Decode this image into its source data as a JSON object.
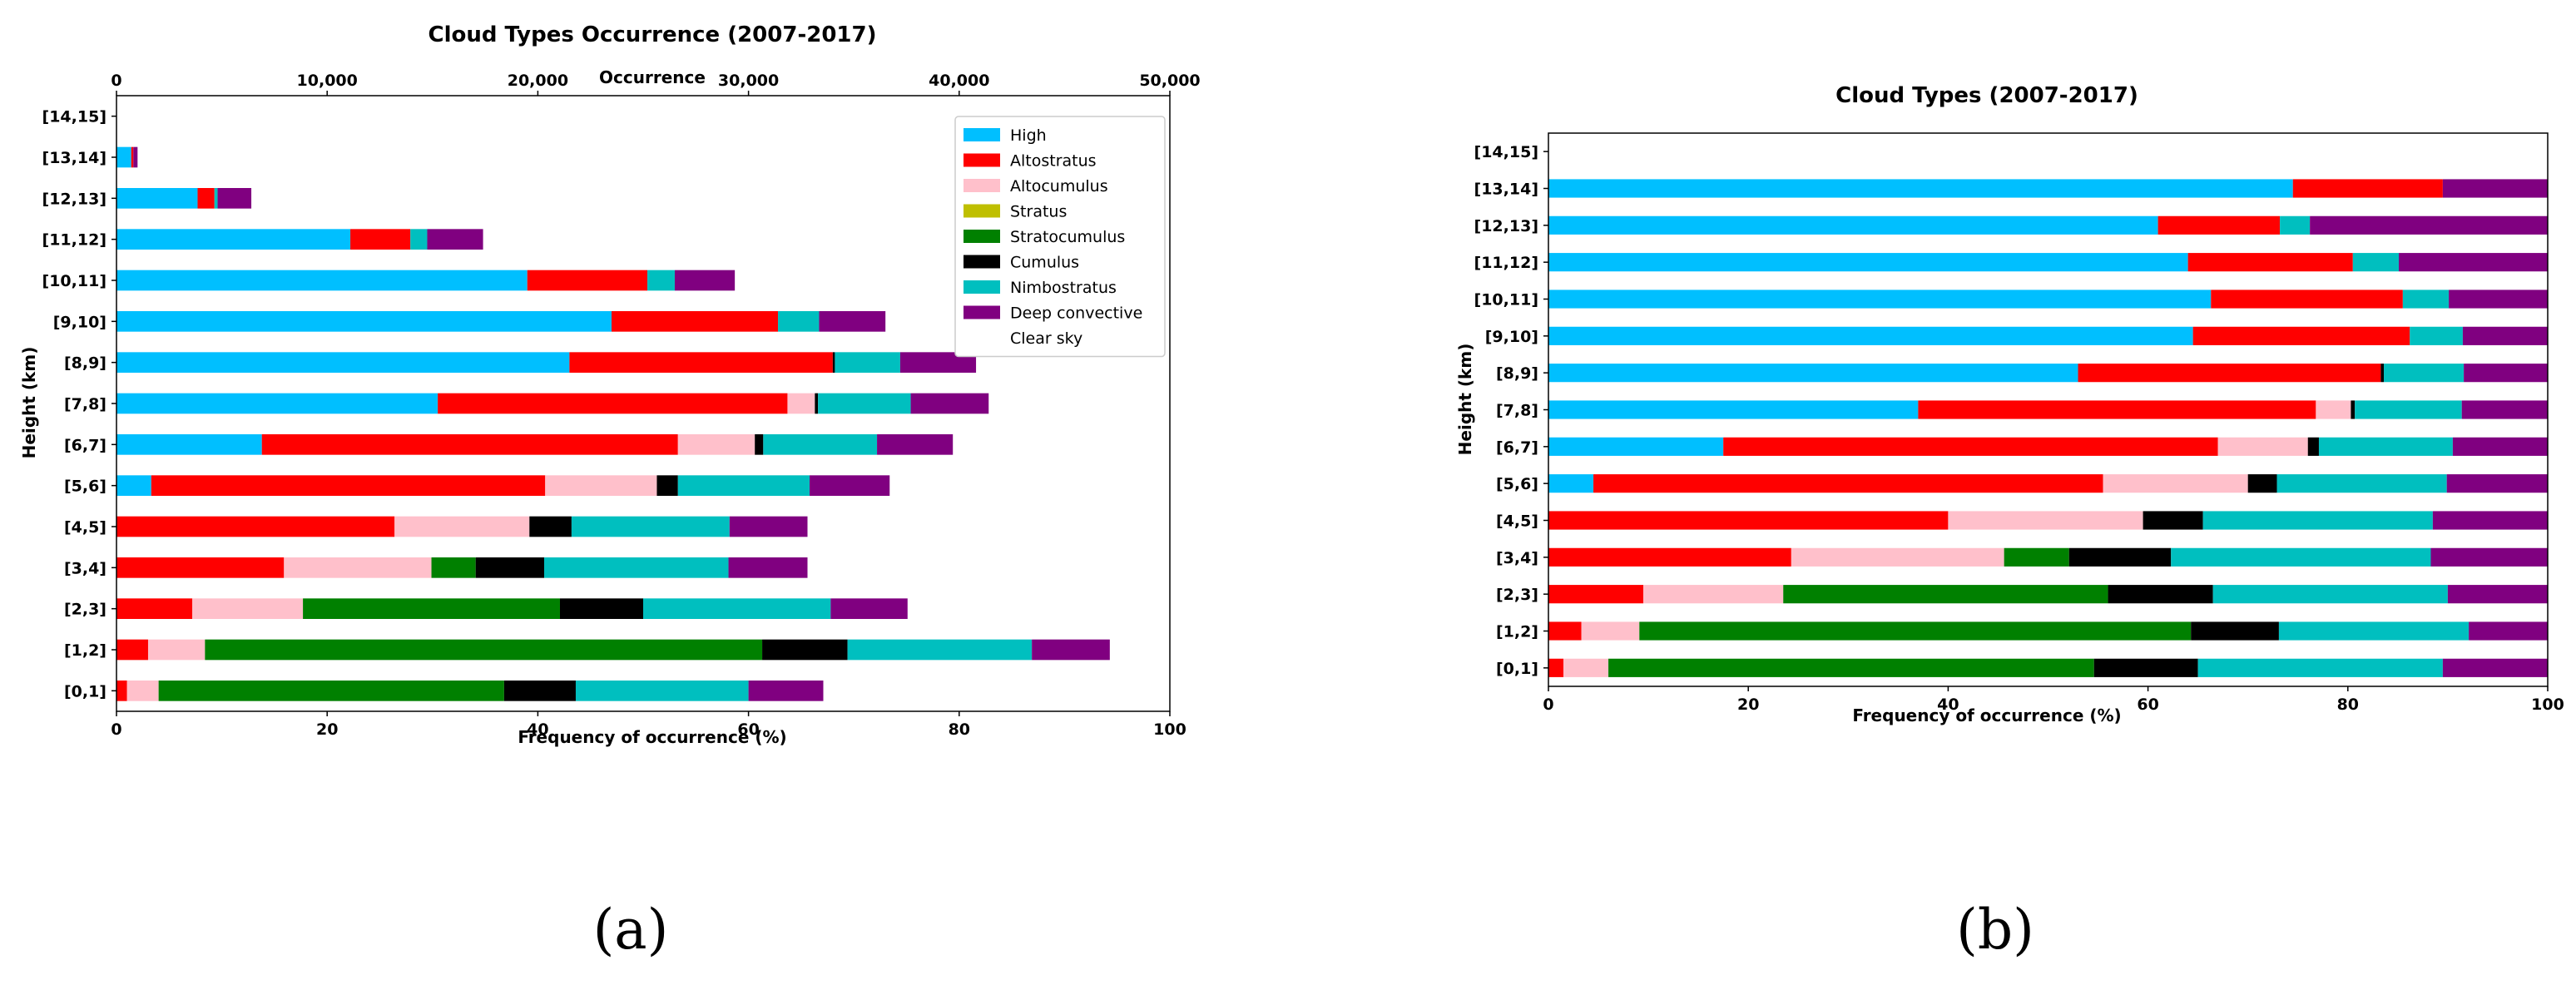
{
  "captions": {
    "a": "(a)",
    "b": "(b)"
  },
  "colors": {
    "High": "#00bfff",
    "Altostratus": "#ff0000",
    "Altocumulus": "#ffc0cb",
    "Stratus": "#bfbf00",
    "Stratocumulus": "#008000",
    "Cumulus": "#000000",
    "Nimbostratus": "#00bfbf",
    "Deep convective": "#800080",
    "Clear sky": "#ffffff"
  },
  "chart_data": [
    {
      "type": "bar",
      "orientation": "horizontal",
      "stacked": true,
      "title": "Cloud Types Occurrence (2007-2017)",
      "xlabel": "Frequency of occurrence (%)",
      "x2label": "Occurrence",
      "ylabel": "Height (km)",
      "xlim": [
        0,
        100
      ],
      "xticks": [
        "0",
        "20",
        "40",
        "60",
        "80",
        "100"
      ],
      "x2lim": [
        0,
        50000
      ],
      "x2ticks": [
        "0",
        "10,000",
        "20,000",
        "30,000",
        "40,000",
        "50,000"
      ],
      "legend": [
        "High",
        "Altostratus",
        "Altocumulus",
        "Stratus",
        "Stratocumulus",
        "Cumulus",
        "Nimbostratus",
        "Deep convective",
        "Clear sky"
      ],
      "legend_loc": "upper right",
      "categories": [
        "[0,1]",
        "[1,2]",
        "[2,3]",
        "[3,4]",
        "[4,5]",
        "[5,6]",
        "[6,7]",
        "[7,8]",
        "[8,9]",
        "[9,10]",
        "[10,11]",
        "[11,12]",
        "[12,13]",
        "[13,14]",
        "[14,15]"
      ],
      "series": [
        {
          "name": "High",
          "values": [
            0,
            0,
            0,
            0,
            0,
            3.3,
            13.8,
            30.5,
            43.0,
            47.0,
            39.0,
            22.2,
            7.7,
            1.4,
            0
          ]
        },
        {
          "name": "Altostratus",
          "values": [
            1.0,
            3.0,
            7.2,
            15.9,
            26.4,
            37.4,
            39.5,
            33.2,
            25.0,
            15.8,
            11.4,
            5.7,
            1.6,
            0.2,
            0
          ]
        },
        {
          "name": "Altocumulus",
          "values": [
            3.0,
            5.4,
            10.5,
            14.0,
            12.8,
            10.6,
            7.3,
            2.6,
            0,
            0,
            0,
            0,
            0,
            0,
            0
          ]
        },
        {
          "name": "Stratus",
          "values": [
            0,
            0,
            0,
            0,
            0,
            0,
            0,
            0,
            0,
            0,
            0,
            0,
            0,
            0,
            0
          ]
        },
        {
          "name": "Stratocumulus",
          "values": [
            32.8,
            52.9,
            24.4,
            4.2,
            0,
            0,
            0,
            0,
            0,
            0,
            0,
            0,
            0,
            0,
            0
          ]
        },
        {
          "name": "Cumulus",
          "values": [
            6.8,
            8.1,
            7.9,
            6.5,
            4.0,
            2.0,
            0.8,
            0.3,
            0.2,
            0,
            0,
            0,
            0,
            0,
            0
          ]
        },
        {
          "name": "Nimbostratus",
          "values": [
            16.4,
            17.5,
            17.8,
            17.5,
            15.0,
            12.5,
            10.8,
            8.8,
            6.2,
            3.9,
            2.6,
            1.6,
            0.3,
            0,
            0
          ]
        },
        {
          "name": "Deep convective",
          "values": [
            7.1,
            7.4,
            7.3,
            7.5,
            7.4,
            7.6,
            7.2,
            7.4,
            7.2,
            6.3,
            5.7,
            5.3,
            3.2,
            0.4,
            0
          ]
        }
      ]
    },
    {
      "type": "bar",
      "orientation": "horizontal",
      "stacked": true,
      "title": "Cloud Types (2007-2017)",
      "xlabel": "Frequency of occurrence (%)",
      "ylabel": "Height (km)",
      "xlim": [
        0,
        100
      ],
      "xticks": [
        "0",
        "20",
        "40",
        "60",
        "80",
        "100"
      ],
      "categories": [
        "[0,1]",
        "[1,2]",
        "[2,3]",
        "[3,4]",
        "[4,5]",
        "[5,6]",
        "[6,7]",
        "[7,8]",
        "[8,9]",
        "[9,10]",
        "[10,11]",
        "[11,12]",
        "[12,13]",
        "[13,14]",
        "[14,15]"
      ],
      "series": [
        {
          "name": "High",
          "values": [
            0,
            0,
            0,
            0,
            0,
            4.5,
            17.5,
            37.0,
            53.0,
            64.5,
            66.3,
            64.0,
            61.0,
            74.5,
            0
          ]
        },
        {
          "name": "Altostratus",
          "values": [
            1.5,
            3.3,
            9.5,
            24.3,
            40.0,
            51.0,
            49.5,
            39.8,
            30.3,
            21.7,
            19.2,
            16.5,
            12.2,
            15.0,
            0
          ]
        },
        {
          "name": "Altocumulus",
          "values": [
            4.5,
            5.8,
            14.0,
            21.3,
            19.5,
            14.5,
            9.0,
            3.5,
            0,
            0,
            0,
            0,
            0,
            0,
            0
          ]
        },
        {
          "name": "Stratus",
          "values": [
            0,
            0,
            0,
            0,
            0,
            0,
            0,
            0,
            0,
            0,
            0,
            0,
            0,
            0,
            0
          ]
        },
        {
          "name": "Stratocumulus",
          "values": [
            48.6,
            55.2,
            32.5,
            6.5,
            0,
            0,
            0,
            0,
            0,
            0,
            0,
            0,
            0,
            0,
            0
          ]
        },
        {
          "name": "Cumulus",
          "values": [
            10.4,
            8.8,
            10.5,
            10.2,
            6.0,
            2.9,
            1.1,
            0.4,
            0.3,
            0,
            0,
            0,
            0,
            0,
            0
          ]
        },
        {
          "name": "Nimbostratus",
          "values": [
            24.5,
            19.0,
            23.5,
            26.0,
            23.0,
            17.0,
            13.4,
            10.7,
            8.0,
            5.3,
            4.6,
            4.6,
            3.0,
            0,
            0
          ]
        },
        {
          "name": "Deep convective",
          "values": [
            10.5,
            7.9,
            10.0,
            11.7,
            11.5,
            10.1,
            9.5,
            8.6,
            8.4,
            8.5,
            9.9,
            14.9,
            23.8,
            10.5,
            0
          ]
        }
      ]
    }
  ]
}
